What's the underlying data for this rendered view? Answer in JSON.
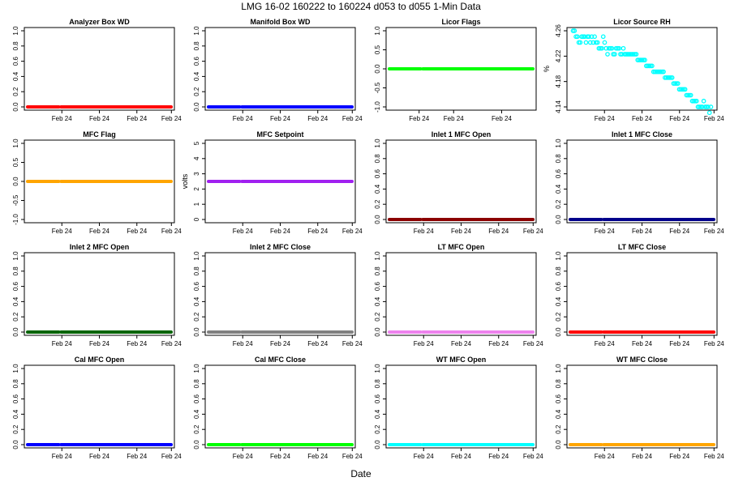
{
  "figure": {
    "title": "LMG   16-02    160222 to 160224    d053 to d055   1-Min Data",
    "xlabel": "Date"
  },
  "chart_data": [
    {
      "type": "scatter",
      "title": "Analyzer Box WD",
      "ylabel": "",
      "ylim": [
        0,
        1
      ],
      "yticks": [
        "0.0",
        "0.2",
        "0.4",
        "0.6",
        "0.8",
        "1.0"
      ],
      "xticks": [
        "Feb 24",
        "Feb 24",
        "Feb 24",
        "Feb 24"
      ],
      "color": "#ff0000",
      "series": [
        {
          "values": [
            0
          ]
        }
      ]
    },
    {
      "type": "scatter",
      "title": "Manifold Box WD",
      "ylabel": "",
      "ylim": [
        0,
        1
      ],
      "yticks": [
        "0.0",
        "0.2",
        "0.4",
        "0.6",
        "0.8",
        "1.0"
      ],
      "xticks": [
        "Feb 24",
        "Feb 24",
        "Feb 24",
        "Feb 24"
      ],
      "color": "#0000ff",
      "series": [
        {
          "values": [
            0
          ]
        }
      ]
    },
    {
      "type": "scatter",
      "title": "Licor Flags",
      "ylabel": "",
      "ylim": [
        -1,
        1
      ],
      "yticks": [
        "-1.0",
        "-0.5",
        "0.0",
        "0.5",
        "1.0"
      ],
      "xticks": [
        "Feb 24",
        "Feb 24",
        "Feb 24"
      ],
      "color": "#00ff00",
      "series": [
        {
          "values": [
            0
          ]
        }
      ]
    },
    {
      "type": "scatter",
      "title": "Licor Source RH",
      "ylabel": "%",
      "ylim": [
        4.14,
        4.27
      ],
      "yticks": [
        "4.14",
        "4.18",
        "4.22",
        "4.26"
      ],
      "xticks": [
        "Feb 24",
        "Feb 24",
        "Feb 24",
        "Feb 24"
      ],
      "color": "#00ffff",
      "points": [
        [
          0.02,
          4.27
        ],
        [
          0.03,
          4.27
        ],
        [
          0.04,
          4.26
        ],
        [
          0.05,
          4.26
        ],
        [
          0.06,
          4.25
        ],
        [
          0.07,
          4.25
        ],
        [
          0.08,
          4.26
        ],
        [
          0.09,
          4.26
        ],
        [
          0.1,
          4.26
        ],
        [
          0.11,
          4.25
        ],
        [
          0.12,
          4.26
        ],
        [
          0.13,
          4.26
        ],
        [
          0.14,
          4.25
        ],
        [
          0.15,
          4.26
        ],
        [
          0.16,
          4.25
        ],
        [
          0.17,
          4.26
        ],
        [
          0.18,
          4.25
        ],
        [
          0.19,
          4.25
        ],
        [
          0.2,
          4.24
        ],
        [
          0.21,
          4.24
        ],
        [
          0.22,
          4.24
        ],
        [
          0.23,
          4.26
        ],
        [
          0.24,
          4.25
        ],
        [
          0.25,
          4.24
        ],
        [
          0.26,
          4.23
        ],
        [
          0.27,
          4.24
        ],
        [
          0.28,
          4.24
        ],
        [
          0.29,
          4.24
        ],
        [
          0.3,
          4.23
        ],
        [
          0.31,
          4.23
        ],
        [
          0.32,
          4.24
        ],
        [
          0.33,
          4.24
        ],
        [
          0.34,
          4.24
        ],
        [
          0.35,
          4.23
        ],
        [
          0.36,
          4.23
        ],
        [
          0.37,
          4.24
        ],
        [
          0.38,
          4.23
        ],
        [
          0.39,
          4.23
        ],
        [
          0.4,
          4.23
        ],
        [
          0.41,
          4.23
        ],
        [
          0.42,
          4.23
        ],
        [
          0.43,
          4.23
        ],
        [
          0.44,
          4.23
        ],
        [
          0.45,
          4.23
        ],
        [
          0.46,
          4.23
        ],
        [
          0.47,
          4.22
        ],
        [
          0.48,
          4.22
        ],
        [
          0.49,
          4.22
        ],
        [
          0.5,
          4.22
        ],
        [
          0.51,
          4.22
        ],
        [
          0.52,
          4.22
        ],
        [
          0.53,
          4.21
        ],
        [
          0.54,
          4.21
        ],
        [
          0.55,
          4.21
        ],
        [
          0.56,
          4.21
        ],
        [
          0.57,
          4.21
        ],
        [
          0.58,
          4.2
        ],
        [
          0.59,
          4.2
        ],
        [
          0.6,
          4.2
        ],
        [
          0.61,
          4.2
        ],
        [
          0.62,
          4.2
        ],
        [
          0.63,
          4.2
        ],
        [
          0.64,
          4.2
        ],
        [
          0.65,
          4.2
        ],
        [
          0.66,
          4.19
        ],
        [
          0.67,
          4.19
        ],
        [
          0.68,
          4.19
        ],
        [
          0.69,
          4.19
        ],
        [
          0.7,
          4.19
        ],
        [
          0.71,
          4.19
        ],
        [
          0.72,
          4.18
        ],
        [
          0.73,
          4.18
        ],
        [
          0.74,
          4.18
        ],
        [
          0.75,
          4.18
        ],
        [
          0.76,
          4.17
        ],
        [
          0.77,
          4.17
        ],
        [
          0.78,
          4.17
        ],
        [
          0.79,
          4.17
        ],
        [
          0.8,
          4.17
        ],
        [
          0.81,
          4.16
        ],
        [
          0.82,
          4.16
        ],
        [
          0.83,
          4.16
        ],
        [
          0.84,
          4.16
        ],
        [
          0.85,
          4.15
        ],
        [
          0.86,
          4.15
        ],
        [
          0.87,
          4.15
        ],
        [
          0.88,
          4.15
        ],
        [
          0.89,
          4.14
        ],
        [
          0.9,
          4.14
        ],
        [
          0.91,
          4.14
        ],
        [
          0.92,
          4.14
        ],
        [
          0.93,
          4.15
        ],
        [
          0.94,
          4.14
        ],
        [
          0.95,
          4.14
        ],
        [
          0.96,
          4.14
        ],
        [
          0.97,
          4.13
        ],
        [
          0.98,
          4.14
        ]
      ]
    },
    {
      "type": "scatter",
      "title": "MFC Flag",
      "ylabel": "",
      "ylim": [
        -1,
        1
      ],
      "yticks": [
        "-1.0",
        "-0.5",
        "0.0",
        "0.5",
        "1.0"
      ],
      "xticks": [
        "Feb 24",
        "Feb 24",
        "Feb 24",
        "Feb 24"
      ],
      "color": "#ffa500",
      "series": [
        {
          "values": [
            0
          ]
        }
      ]
    },
    {
      "type": "scatter",
      "title": "MFC Setpoint",
      "ylabel": "volts",
      "ylim": [
        0,
        5
      ],
      "yticks": [
        "0",
        "1",
        "2",
        "3",
        "4",
        "5"
      ],
      "xticks": [
        "Feb 24",
        "Feb 24",
        "Feb 24",
        "Feb 24"
      ],
      "color": "#a020f0",
      "series": [
        {
          "values": [
            2.5
          ]
        }
      ]
    },
    {
      "type": "scatter",
      "title": "Inlet 1 MFC Open",
      "ylabel": "",
      "ylim": [
        0,
        1
      ],
      "yticks": [
        "0.0",
        "0.2",
        "0.4",
        "0.6",
        "0.8",
        "1.0"
      ],
      "xticks": [
        "Feb 24",
        "Feb 24",
        "Feb 24",
        "Feb 24"
      ],
      "color": "#8b0000",
      "series": [
        {
          "values": [
            0
          ]
        }
      ]
    },
    {
      "type": "scatter",
      "title": "Inlet 1 MFC Close",
      "ylabel": "",
      "ylim": [
        0,
        1
      ],
      "yticks": [
        "0.0",
        "0.2",
        "0.4",
        "0.6",
        "0.8",
        "1.0"
      ],
      "xticks": [
        "Feb 24",
        "Feb 24",
        "Feb 24",
        "Feb 24"
      ],
      "color": "#00008b",
      "series": [
        {
          "values": [
            0
          ]
        }
      ]
    },
    {
      "type": "scatter",
      "title": "Inlet 2 MFC Open",
      "ylabel": "",
      "ylim": [
        0,
        1
      ],
      "yticks": [
        "0.0",
        "0.2",
        "0.4",
        "0.6",
        "0.8",
        "1.0"
      ],
      "xticks": [
        "Feb 24",
        "Feb 24",
        "Feb 24",
        "Feb 24"
      ],
      "color": "#006400",
      "series": [
        {
          "values": [
            0
          ]
        }
      ]
    },
    {
      "type": "scatter",
      "title": "Inlet 2 MFC Close",
      "ylabel": "",
      "ylim": [
        0,
        1
      ],
      "yticks": [
        "0.0",
        "0.2",
        "0.4",
        "0.6",
        "0.8",
        "1.0"
      ],
      "xticks": [
        "Feb 24",
        "Feb 24",
        "Feb 24",
        "Feb 24"
      ],
      "color": "#808080",
      "series": [
        {
          "values": [
            0
          ]
        }
      ]
    },
    {
      "type": "scatter",
      "title": "LT MFC Open",
      "ylabel": "",
      "ylim": [
        0,
        1
      ],
      "yticks": [
        "0.0",
        "0.2",
        "0.4",
        "0.6",
        "0.8",
        "1.0"
      ],
      "xticks": [
        "Feb 24",
        "Feb 24",
        "Feb 24",
        "Feb 24"
      ],
      "color": "#ee82ee",
      "series": [
        {
          "values": [
            0
          ]
        }
      ]
    },
    {
      "type": "scatter",
      "title": "LT MFC Close",
      "ylabel": "",
      "ylim": [
        0,
        1
      ],
      "yticks": [
        "0.0",
        "0.2",
        "0.4",
        "0.6",
        "0.8",
        "1.0"
      ],
      "xticks": [
        "Feb 24",
        "Feb 24",
        "Feb 24",
        "Feb 24"
      ],
      "color": "#ff0000",
      "series": [
        {
          "values": [
            0
          ]
        }
      ]
    },
    {
      "type": "scatter",
      "title": "Cal MFC Open",
      "ylabel": "",
      "ylim": [
        0,
        1
      ],
      "yticks": [
        "0.0",
        "0.2",
        "0.4",
        "0.6",
        "0.8",
        "1.0"
      ],
      "xticks": [
        "Feb 24",
        "Feb 24",
        "Feb 24",
        "Feb 24"
      ],
      "color": "#0000ff",
      "series": [
        {
          "values": [
            0
          ]
        }
      ]
    },
    {
      "type": "scatter",
      "title": "Cal MFC Close",
      "ylabel": "",
      "ylim": [
        0,
        1
      ],
      "yticks": [
        "0.0",
        "0.2",
        "0.4",
        "0.6",
        "0.8",
        "1.0"
      ],
      "xticks": [
        "Feb 24",
        "Feb 24",
        "Feb 24",
        "Feb 24"
      ],
      "color": "#00ff00",
      "series": [
        {
          "values": [
            0
          ]
        }
      ]
    },
    {
      "type": "scatter",
      "title": "WT MFC Open",
      "ylabel": "",
      "ylim": [
        0,
        1
      ],
      "yticks": [
        "0.0",
        "0.2",
        "0.4",
        "0.6",
        "0.8",
        "1.0"
      ],
      "xticks": [
        "Feb 24",
        "Feb 24",
        "Feb 24",
        "Feb 24"
      ],
      "color": "#00ffff",
      "series": [
        {
          "values": [
            0
          ]
        }
      ]
    },
    {
      "type": "scatter",
      "title": "WT MFC Close",
      "ylabel": "",
      "ylim": [
        0,
        1
      ],
      "yticks": [
        "0.0",
        "0.2",
        "0.4",
        "0.6",
        "0.8",
        "1.0"
      ],
      "xticks": [
        "Feb 24",
        "Feb 24",
        "Feb 24",
        "Feb 24"
      ],
      "color": "#ffa500",
      "series": [
        {
          "values": [
            0
          ]
        }
      ]
    }
  ]
}
